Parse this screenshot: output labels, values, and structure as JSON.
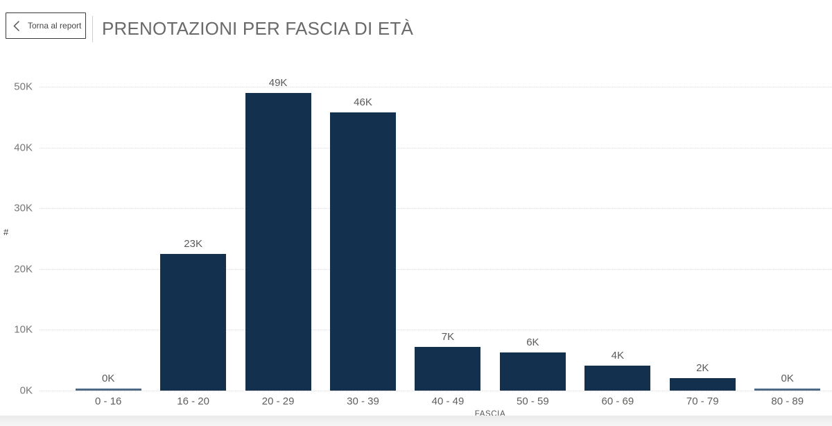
{
  "header": {
    "back_button_label": "Torna al report",
    "title": "PRENOTAZIONI PER FASCIA DI ETÀ"
  },
  "chart_data": {
    "type": "bar",
    "title": "PRENOTAZIONI PER FASCIA DI ETÀ",
    "xlabel": "FASCIA",
    "ylabel": "#",
    "categories": [
      "0 - 16",
      "16 - 20",
      "20 - 29",
      "30 - 39",
      "40 - 49",
      "50 - 59",
      "60 - 69",
      "70 - 79",
      "80 - 89"
    ],
    "values_thousands": [
      0.3,
      22.5,
      49.0,
      45.8,
      7.2,
      6.3,
      4.1,
      2.0,
      0.3
    ],
    "bar_labels": [
      "0K",
      "23K",
      "49K",
      "46K",
      "7K",
      "6K",
      "4K",
      "2K",
      "0K"
    ],
    "yticks_thousands": [
      0,
      10,
      20,
      30,
      40,
      50
    ],
    "ytick_labels": [
      "0K",
      "10K",
      "20K",
      "30K",
      "40K",
      "50K"
    ],
    "ylim_thousands": [
      0,
      50
    ],
    "grid": "horizontal dotted",
    "legend": "none",
    "colors": {
      "bar": "#13304f",
      "zero_bar": "#4e6a86",
      "grid": "#dedede",
      "data_label": "#5a5a5a",
      "axis_label": "#605e5c"
    }
  }
}
